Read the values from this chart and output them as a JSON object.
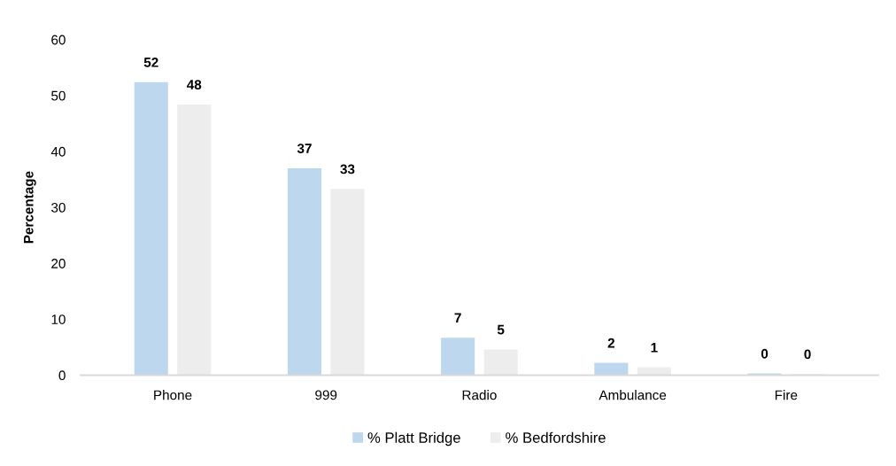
{
  "chart_data": {
    "type": "bar",
    "ylabel": "Percentage",
    "categories": [
      "Phone",
      "999",
      "Radio",
      "Ambulance",
      "Fire"
    ],
    "series": [
      {
        "name": "% Platt Bridge",
        "color": "#bdd7ee",
        "values": [
          52.4,
          37.0,
          6.7,
          2.2,
          0.3
        ],
        "value_labels": [
          "52",
          "37",
          "7",
          "2",
          "0"
        ]
      },
      {
        "name": "% Bedfordshire",
        "color": "#ededed",
        "values": [
          48.4,
          33.3,
          4.6,
          1.4,
          0.2
        ],
        "value_labels": [
          "48",
          "33",
          "5",
          "1",
          "0"
        ]
      }
    ],
    "ylim": [
      0,
      60
    ],
    "yticks": [
      0,
      10,
      20,
      30,
      40,
      50,
      60
    ],
    "grid": false,
    "legend": "bottom"
  }
}
